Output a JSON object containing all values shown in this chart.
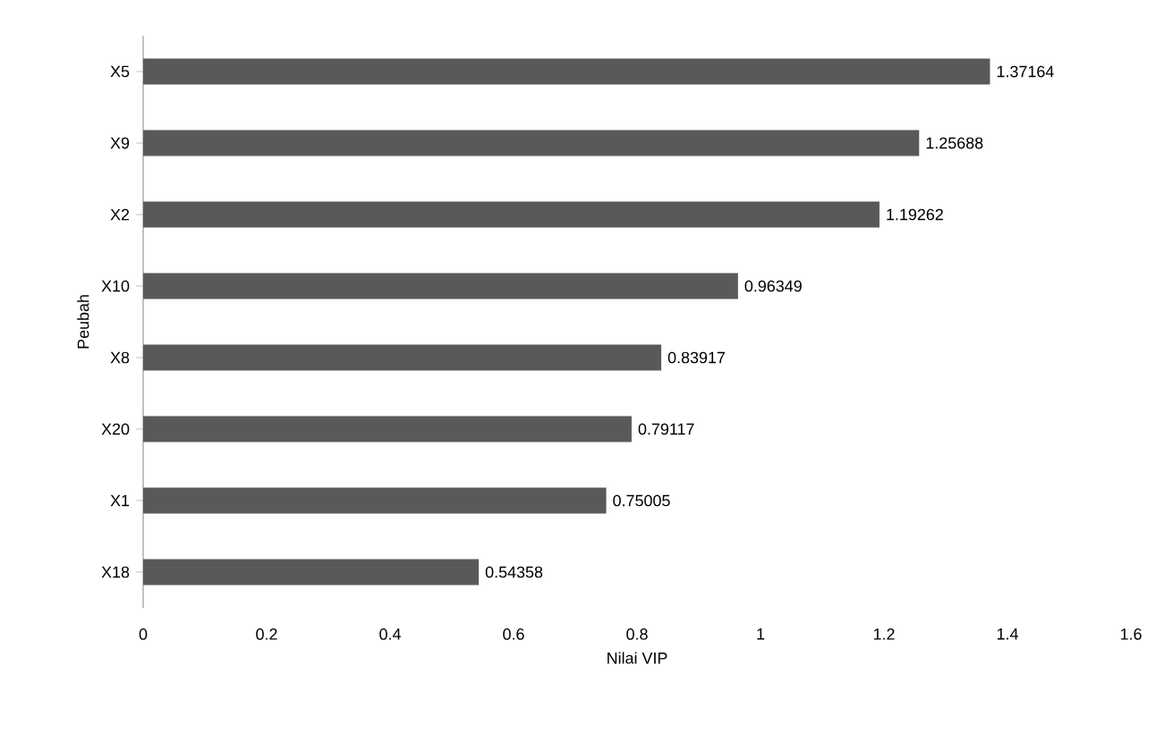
{
  "chart_data": {
    "type": "bar",
    "orientation": "horizontal",
    "categories": [
      "X5",
      "X9",
      "X2",
      "X10",
      "X8",
      "X20",
      "X1",
      "X18"
    ],
    "values": [
      1.37164,
      1.25688,
      1.19262,
      0.96349,
      0.83917,
      0.79117,
      0.75005,
      0.54358
    ],
    "color": "#595959",
    "xlim": [
      0,
      1.6
    ],
    "xticks": [
      0,
      0.2,
      0.4,
      0.6,
      0.8,
      1,
      1.2,
      1.4,
      1.6
    ],
    "xlabel": "Nilai VIP",
    "ylabel": "Peubah",
    "data_labels": true
  }
}
